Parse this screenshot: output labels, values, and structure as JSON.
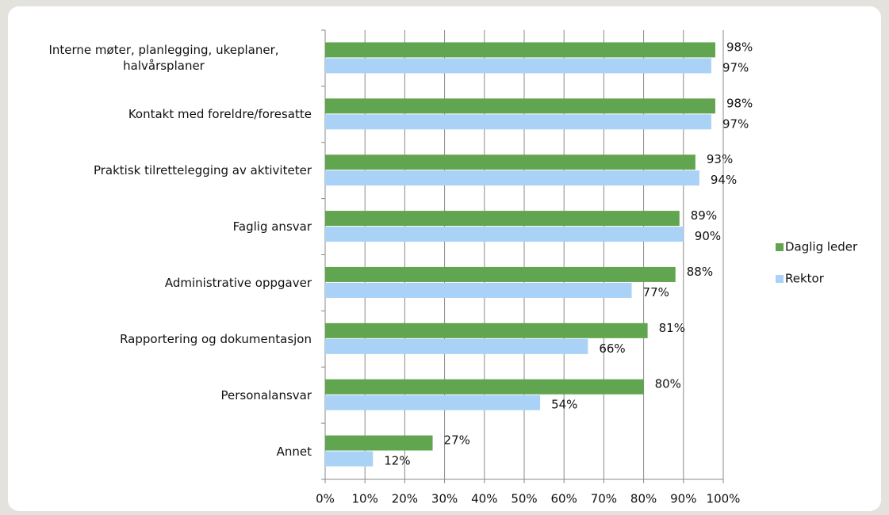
{
  "chart_data": {
    "type": "barh",
    "categories": [
      "Interne møter, planlegging, ukeplaner, halvårsplaner",
      "Kontakt med foreldre/foresatte",
      "Praktisk tilrettelegging av aktiviteter",
      "Faglig ansvar",
      "Administrative oppgaver",
      "Rapportering og dokumentasjon",
      "Personalansvar",
      "Annet"
    ],
    "series": [
      {
        "name": "Daglig leder",
        "color": "#62a550",
        "values": [
          98,
          98,
          93,
          89,
          88,
          81,
          80,
          27
        ],
        "value_labels": [
          "98%",
          "98%",
          "93%",
          "89%",
          "88%",
          "81%",
          "80%",
          "27%"
        ]
      },
      {
        "name": "Rektor",
        "color": "#aad2f6",
        "values": [
          97,
          97,
          94,
          90,
          77,
          66,
          54,
          12
        ],
        "value_labels": [
          "97%",
          "97%",
          "94%",
          "90%",
          "77%",
          "66%",
          "54%",
          "12%"
        ]
      }
    ],
    "xlim": [
      0,
      100
    ],
    "xticks": [
      {
        "value": 0,
        "label": "0%"
      },
      {
        "value": 10,
        "label": "10%"
      },
      {
        "value": 20,
        "label": "20%"
      },
      {
        "value": 30,
        "label": "30%"
      },
      {
        "value": 40,
        "label": "40%"
      },
      {
        "value": 50,
        "label": "50%"
      },
      {
        "value": 60,
        "label": "60%"
      },
      {
        "value": 70,
        "label": "70%"
      },
      {
        "value": 80,
        "label": "80%"
      },
      {
        "value": 90,
        "label": "90%"
      },
      {
        "value": 100,
        "label": "100%"
      }
    ],
    "grid": true,
    "legend": "right"
  }
}
